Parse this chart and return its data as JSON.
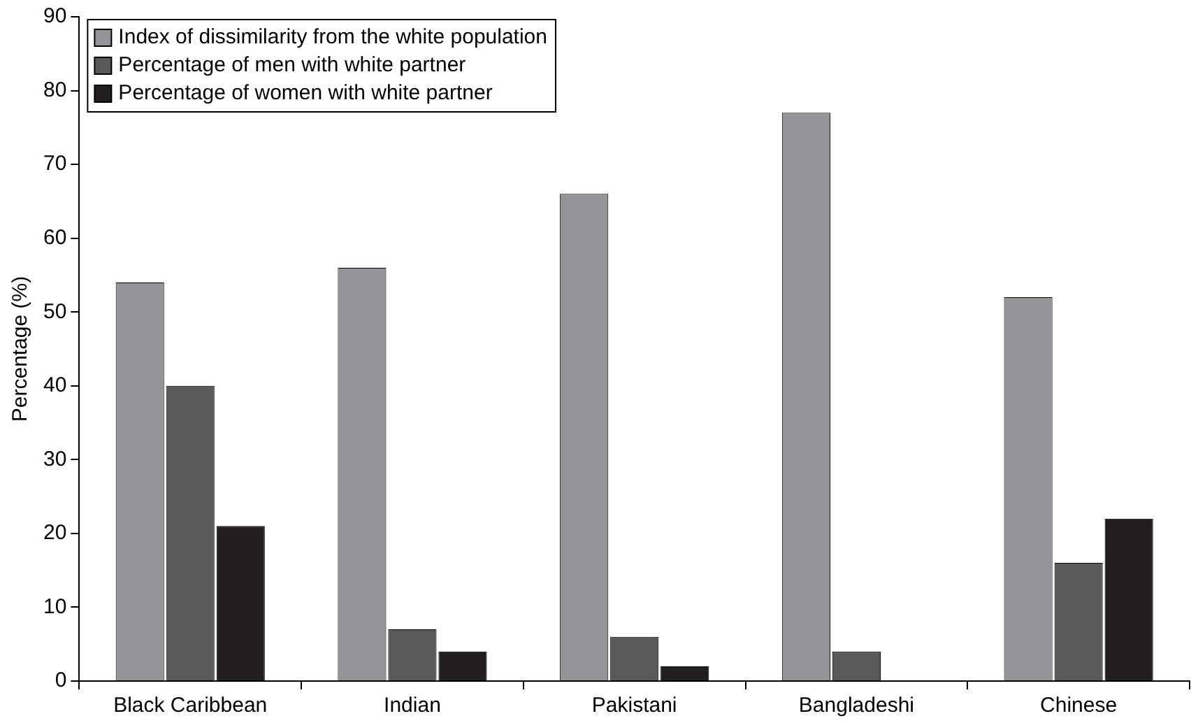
{
  "chart_data": {
    "type": "bar",
    "ylabel": "Percentage (%)",
    "categories": [
      "Black Caribbean",
      "Indian",
      "Pakistani",
      "Bangladeshi",
      "Chinese"
    ],
    "series": [
      {
        "name": "Index of dissimilarity from the white population",
        "color": "#939598",
        "values": [
          54,
          56,
          66,
          77,
          52
        ]
      },
      {
        "name": "Percentage of men with white partner",
        "color": "#58595b",
        "values": [
          40,
          7,
          6,
          4,
          16
        ]
      },
      {
        "name": "Percentage of women with white partner",
        "color": "#231f20",
        "values": [
          21,
          4,
          2,
          0,
          22
        ]
      }
    ],
    "ylim": [
      0,
      90
    ],
    "yticks": [
      0,
      10,
      20,
      30,
      40,
      50,
      60,
      70,
      80,
      90
    ],
    "grid": false,
    "legend": "top left"
  }
}
